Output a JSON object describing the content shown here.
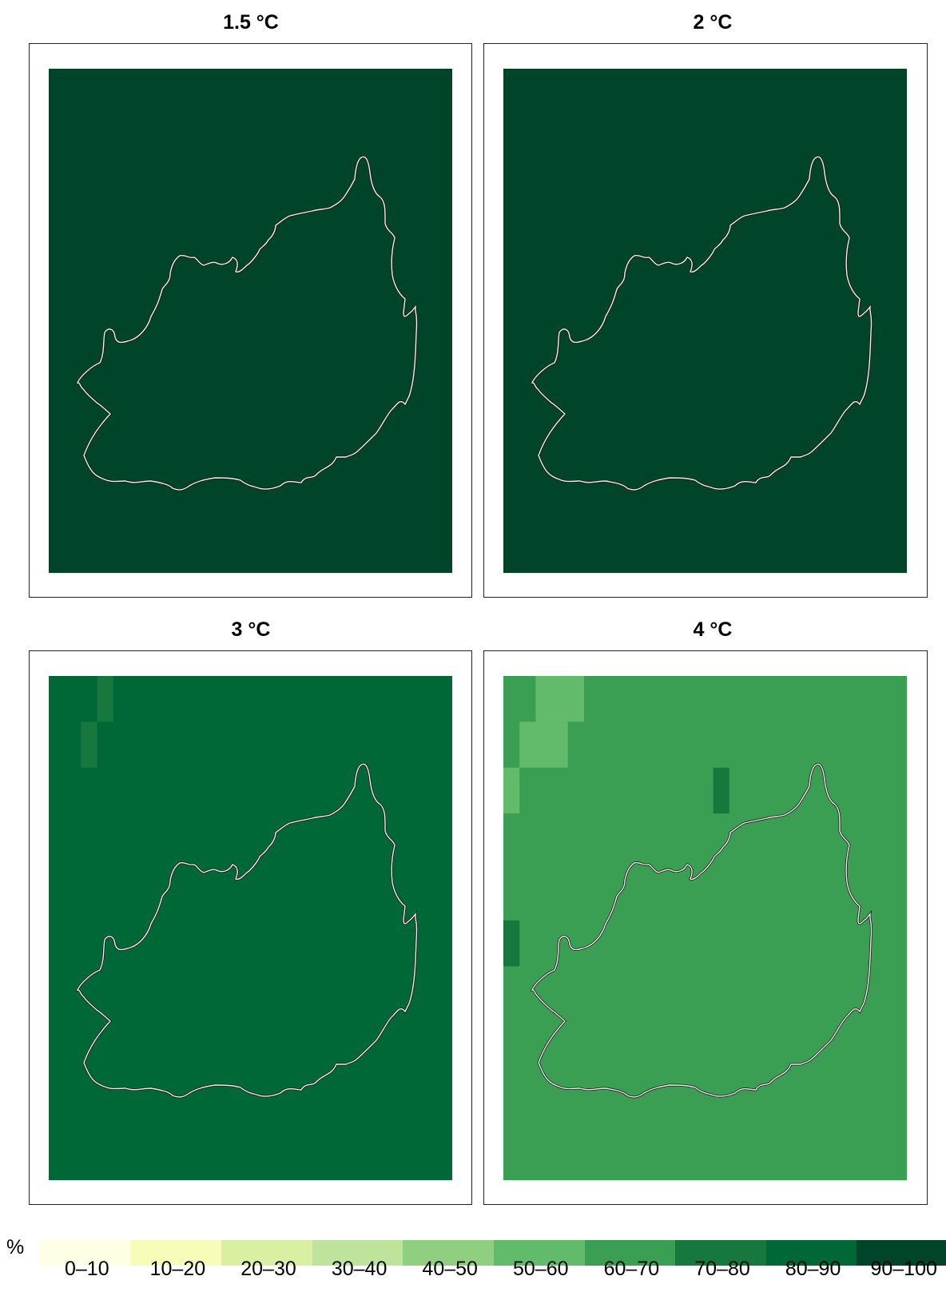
{
  "panels": [
    {
      "title": "1.5 °C",
      "base_color": "#004529",
      "cells": []
    },
    {
      "title": "2 °C",
      "base_color": "#004529",
      "cells": []
    },
    {
      "title": "3 °C",
      "base_color": "#006837",
      "cells": [
        {
          "col": 3,
          "row": 0,
          "rows": 3,
          "color": "#17783e"
        },
        {
          "col": 2,
          "row": 3,
          "rows": 3,
          "color": "#17783e"
        }
      ]
    },
    {
      "title": "4 °C",
      "base_color": "#3a9f52",
      "cells": [
        {
          "col": 2,
          "row": 0,
          "cols": 3,
          "rows": 3,
          "color": "#62ba6b"
        },
        {
          "col": 1,
          "row": 3,
          "cols": 3,
          "rows": 3,
          "color": "#62ba6b"
        },
        {
          "col": 0,
          "row": 6,
          "rows": 3,
          "color": "#62ba6b"
        },
        {
          "col": 13,
          "row": 6,
          "rows": 3,
          "color": "#17783e"
        },
        {
          "col": 0,
          "row": 16,
          "rows": 3,
          "color": "#17783e"
        }
      ]
    }
  ],
  "legend": {
    "unit": "%",
    "bins": [
      {
        "label": "0–10",
        "color": "#ffffe5"
      },
      {
        "label": "10–20",
        "color": "#f7fcb9"
      },
      {
        "label": "20–30",
        "color": "#d9f0a3"
      },
      {
        "label": "30–40",
        "color": "#bde49a"
      },
      {
        "label": "40–50",
        "color": "#8fcf7f"
      },
      {
        "label": "50–60",
        "color": "#62ba6b"
      },
      {
        "label": "60–70",
        "color": "#3a9f52"
      },
      {
        "label": "70–80",
        "color": "#17783e"
      },
      {
        "label": "80–90",
        "color": "#006837"
      },
      {
        "label": "90–100",
        "color": "#004529"
      }
    ]
  }
}
